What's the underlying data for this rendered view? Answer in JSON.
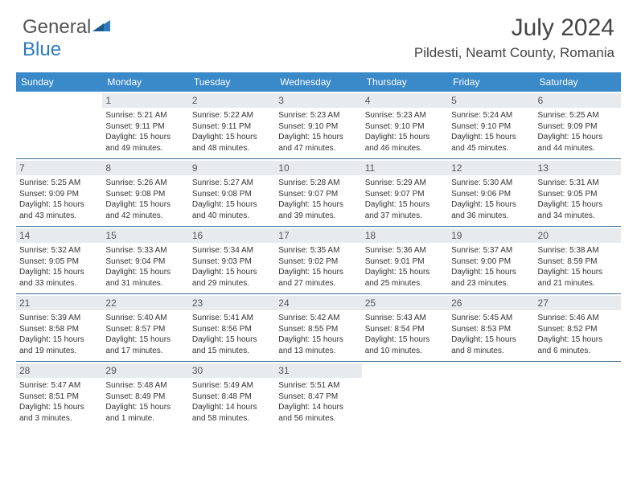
{
  "logo": {
    "text1": "General",
    "text2": "Blue"
  },
  "title": "July 2024",
  "location": "Pildesti, Neamt County, Romania",
  "day_names": [
    "Sunday",
    "Monday",
    "Tuesday",
    "Wednesday",
    "Thursday",
    "Friday",
    "Saturday"
  ],
  "colors": {
    "header_bg": "#3a89c9",
    "header_text": "#ffffff",
    "daynum_bg": "#e7ebee",
    "week_border": "#3a6b8a",
    "logo_gray": "#555555",
    "logo_blue": "#2b7bbf"
  },
  "weeks": [
    [
      {
        "n": "",
        "sr": "",
        "ss": "",
        "dl": ""
      },
      {
        "n": "1",
        "sr": "Sunrise: 5:21 AM",
        "ss": "Sunset: 9:11 PM",
        "dl": "Daylight: 15 hours and 49 minutes."
      },
      {
        "n": "2",
        "sr": "Sunrise: 5:22 AM",
        "ss": "Sunset: 9:11 PM",
        "dl": "Daylight: 15 hours and 48 minutes."
      },
      {
        "n": "3",
        "sr": "Sunrise: 5:23 AM",
        "ss": "Sunset: 9:10 PM",
        "dl": "Daylight: 15 hours and 47 minutes."
      },
      {
        "n": "4",
        "sr": "Sunrise: 5:23 AM",
        "ss": "Sunset: 9:10 PM",
        "dl": "Daylight: 15 hours and 46 minutes."
      },
      {
        "n": "5",
        "sr": "Sunrise: 5:24 AM",
        "ss": "Sunset: 9:10 PM",
        "dl": "Daylight: 15 hours and 45 minutes."
      },
      {
        "n": "6",
        "sr": "Sunrise: 5:25 AM",
        "ss": "Sunset: 9:09 PM",
        "dl": "Daylight: 15 hours and 44 minutes."
      }
    ],
    [
      {
        "n": "7",
        "sr": "Sunrise: 5:25 AM",
        "ss": "Sunset: 9:09 PM",
        "dl": "Daylight: 15 hours and 43 minutes."
      },
      {
        "n": "8",
        "sr": "Sunrise: 5:26 AM",
        "ss": "Sunset: 9:08 PM",
        "dl": "Daylight: 15 hours and 42 minutes."
      },
      {
        "n": "9",
        "sr": "Sunrise: 5:27 AM",
        "ss": "Sunset: 9:08 PM",
        "dl": "Daylight: 15 hours and 40 minutes."
      },
      {
        "n": "10",
        "sr": "Sunrise: 5:28 AM",
        "ss": "Sunset: 9:07 PM",
        "dl": "Daylight: 15 hours and 39 minutes."
      },
      {
        "n": "11",
        "sr": "Sunrise: 5:29 AM",
        "ss": "Sunset: 9:07 PM",
        "dl": "Daylight: 15 hours and 37 minutes."
      },
      {
        "n": "12",
        "sr": "Sunrise: 5:30 AM",
        "ss": "Sunset: 9:06 PM",
        "dl": "Daylight: 15 hours and 36 minutes."
      },
      {
        "n": "13",
        "sr": "Sunrise: 5:31 AM",
        "ss": "Sunset: 9:05 PM",
        "dl": "Daylight: 15 hours and 34 minutes."
      }
    ],
    [
      {
        "n": "14",
        "sr": "Sunrise: 5:32 AM",
        "ss": "Sunset: 9:05 PM",
        "dl": "Daylight: 15 hours and 33 minutes."
      },
      {
        "n": "15",
        "sr": "Sunrise: 5:33 AM",
        "ss": "Sunset: 9:04 PM",
        "dl": "Daylight: 15 hours and 31 minutes."
      },
      {
        "n": "16",
        "sr": "Sunrise: 5:34 AM",
        "ss": "Sunset: 9:03 PM",
        "dl": "Daylight: 15 hours and 29 minutes."
      },
      {
        "n": "17",
        "sr": "Sunrise: 5:35 AM",
        "ss": "Sunset: 9:02 PM",
        "dl": "Daylight: 15 hours and 27 minutes."
      },
      {
        "n": "18",
        "sr": "Sunrise: 5:36 AM",
        "ss": "Sunset: 9:01 PM",
        "dl": "Daylight: 15 hours and 25 minutes."
      },
      {
        "n": "19",
        "sr": "Sunrise: 5:37 AM",
        "ss": "Sunset: 9:00 PM",
        "dl": "Daylight: 15 hours and 23 minutes."
      },
      {
        "n": "20",
        "sr": "Sunrise: 5:38 AM",
        "ss": "Sunset: 8:59 PM",
        "dl": "Daylight: 15 hours and 21 minutes."
      }
    ],
    [
      {
        "n": "21",
        "sr": "Sunrise: 5:39 AM",
        "ss": "Sunset: 8:58 PM",
        "dl": "Daylight: 15 hours and 19 minutes."
      },
      {
        "n": "22",
        "sr": "Sunrise: 5:40 AM",
        "ss": "Sunset: 8:57 PM",
        "dl": "Daylight: 15 hours and 17 minutes."
      },
      {
        "n": "23",
        "sr": "Sunrise: 5:41 AM",
        "ss": "Sunset: 8:56 PM",
        "dl": "Daylight: 15 hours and 15 minutes."
      },
      {
        "n": "24",
        "sr": "Sunrise: 5:42 AM",
        "ss": "Sunset: 8:55 PM",
        "dl": "Daylight: 15 hours and 13 minutes."
      },
      {
        "n": "25",
        "sr": "Sunrise: 5:43 AM",
        "ss": "Sunset: 8:54 PM",
        "dl": "Daylight: 15 hours and 10 minutes."
      },
      {
        "n": "26",
        "sr": "Sunrise: 5:45 AM",
        "ss": "Sunset: 8:53 PM",
        "dl": "Daylight: 15 hours and 8 minutes."
      },
      {
        "n": "27",
        "sr": "Sunrise: 5:46 AM",
        "ss": "Sunset: 8:52 PM",
        "dl": "Daylight: 15 hours and 6 minutes."
      }
    ],
    [
      {
        "n": "28",
        "sr": "Sunrise: 5:47 AM",
        "ss": "Sunset: 8:51 PM",
        "dl": "Daylight: 15 hours and 3 minutes."
      },
      {
        "n": "29",
        "sr": "Sunrise: 5:48 AM",
        "ss": "Sunset: 8:49 PM",
        "dl": "Daylight: 15 hours and 1 minute."
      },
      {
        "n": "30",
        "sr": "Sunrise: 5:49 AM",
        "ss": "Sunset: 8:48 PM",
        "dl": "Daylight: 14 hours and 58 minutes."
      },
      {
        "n": "31",
        "sr": "Sunrise: 5:51 AM",
        "ss": "Sunset: 8:47 PM",
        "dl": "Daylight: 14 hours and 56 minutes."
      },
      {
        "n": "",
        "sr": "",
        "ss": "",
        "dl": ""
      },
      {
        "n": "",
        "sr": "",
        "ss": "",
        "dl": ""
      },
      {
        "n": "",
        "sr": "",
        "ss": "",
        "dl": ""
      }
    ]
  ]
}
